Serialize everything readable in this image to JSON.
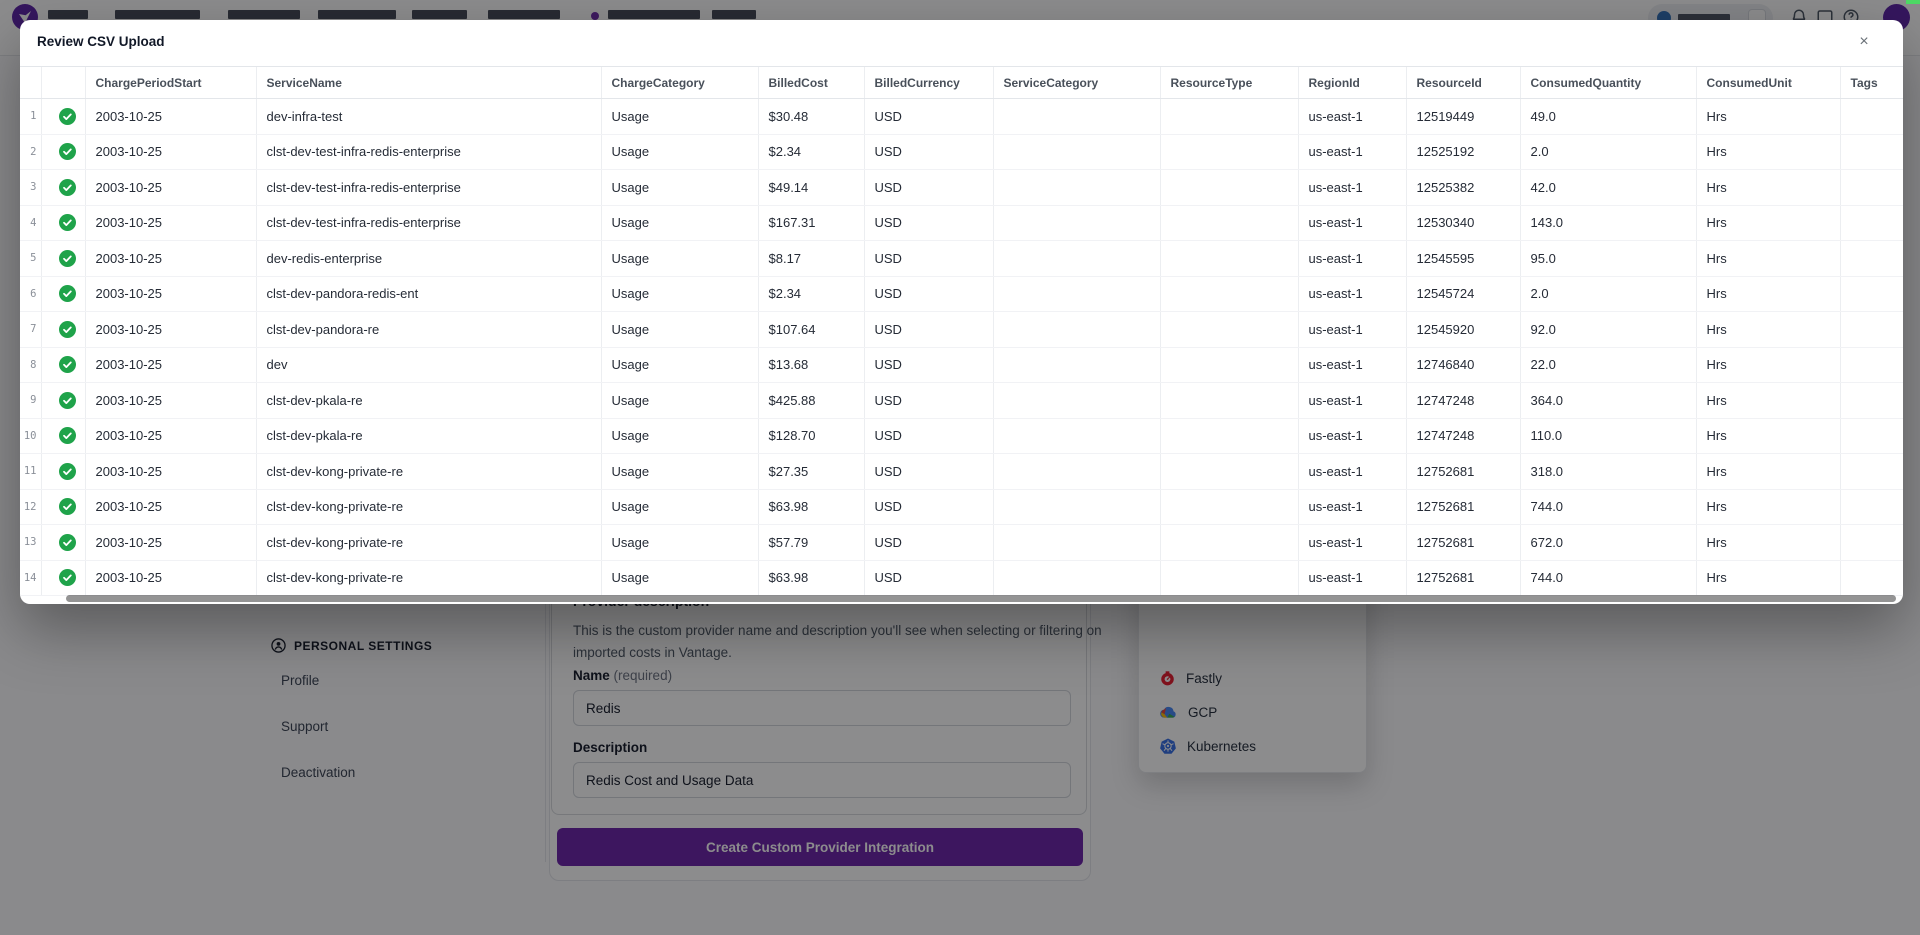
{
  "navbar": {
    "icons": [
      "notifications-icon",
      "messages-icon",
      "help-icon"
    ],
    "brand_color": "#5b21a6"
  },
  "modal": {
    "title": "Review CSV Upload",
    "close_glyph": "×",
    "table": {
      "status_icon": "check-circle-green",
      "columns": [
        "ChargePeriodStart",
        "ServiceName",
        "ChargeCategory",
        "BilledCost",
        "BilledCurrency",
        "ServiceCategory",
        "ResourceType",
        "RegionId",
        "ResourceId",
        "ConsumedQuantity",
        "ConsumedUnit",
        "Tags"
      ],
      "rows": [
        [
          "2003-10-25",
          "dev-infra-test",
          "Usage",
          "$30.48",
          "USD",
          "",
          "",
          "us-east-1",
          "12519449",
          "49.0",
          "Hrs",
          ""
        ],
        [
          "2003-10-25",
          "clst-dev-test-infra-redis-enterprise",
          "Usage",
          "$2.34",
          "USD",
          "",
          "",
          "us-east-1",
          "12525192",
          "2.0",
          "Hrs",
          ""
        ],
        [
          "2003-10-25",
          "clst-dev-test-infra-redis-enterprise",
          "Usage",
          "$49.14",
          "USD",
          "",
          "",
          "us-east-1",
          "12525382",
          "42.0",
          "Hrs",
          ""
        ],
        [
          "2003-10-25",
          "clst-dev-test-infra-redis-enterprise",
          "Usage",
          "$167.31",
          "USD",
          "",
          "",
          "us-east-1",
          "12530340",
          "143.0",
          "Hrs",
          ""
        ],
        [
          "2003-10-25",
          "dev-redis-enterprise",
          "Usage",
          "$8.17",
          "USD",
          "",
          "",
          "us-east-1",
          "12545595",
          "95.0",
          "Hrs",
          ""
        ],
        [
          "2003-10-25",
          "clst-dev-pandora-redis-ent",
          "Usage",
          "$2.34",
          "USD",
          "",
          "",
          "us-east-1",
          "12545724",
          "2.0",
          "Hrs",
          ""
        ],
        [
          "2003-10-25",
          "clst-dev-pandora-re",
          "Usage",
          "$107.64",
          "USD",
          "",
          "",
          "us-east-1",
          "12545920",
          "92.0",
          "Hrs",
          ""
        ],
        [
          "2003-10-25",
          "dev",
          "Usage",
          "$13.68",
          "USD",
          "",
          "",
          "us-east-1",
          "12746840",
          "22.0",
          "Hrs",
          ""
        ],
        [
          "2003-10-25",
          "clst-dev-pkala-re",
          "Usage",
          "$425.88",
          "USD",
          "",
          "",
          "us-east-1",
          "12747248",
          "364.0",
          "Hrs",
          ""
        ],
        [
          "2003-10-25",
          "clst-dev-pkala-re",
          "Usage",
          "$128.70",
          "USD",
          "",
          "",
          "us-east-1",
          "12747248",
          "110.0",
          "Hrs",
          ""
        ],
        [
          "2003-10-25",
          "clst-dev-kong-private-re",
          "Usage",
          "$27.35",
          "USD",
          "",
          "",
          "us-east-1",
          "12752681",
          "318.0",
          "Hrs",
          ""
        ],
        [
          "2003-10-25",
          "clst-dev-kong-private-re",
          "Usage",
          "$63.98",
          "USD",
          "",
          "",
          "us-east-1",
          "12752681",
          "744.0",
          "Hrs",
          ""
        ],
        [
          "2003-10-25",
          "clst-dev-kong-private-re",
          "Usage",
          "$57.79",
          "USD",
          "",
          "",
          "us-east-1",
          "12752681",
          "672.0",
          "Hrs",
          ""
        ],
        [
          "2003-10-25",
          "clst-dev-kong-private-re",
          "Usage",
          "$63.98",
          "USD",
          "",
          "",
          "us-east-1",
          "12752681",
          "744.0",
          "Hrs",
          ""
        ]
      ]
    }
  },
  "background": {
    "sidebar": {
      "section_label": "PERSONAL SETTINGS",
      "items": [
        {
          "label": "Profile"
        },
        {
          "label": "Support"
        },
        {
          "label": "Deactivation"
        }
      ]
    },
    "form": {
      "heading": "Provider description",
      "description": "This is the custom provider name and description you'll see when selecting or filtering on imported costs in Vantage.",
      "name_label": "Name",
      "name_required": "(required)",
      "name_value": "Redis",
      "description_label": "Description",
      "description_value": "Redis Cost and Usage Data",
      "submit_label": "Create Custom Provider Integration"
    },
    "provider_dropdown": {
      "items": [
        {
          "label": "Fastly",
          "icon": "fastly-icon"
        },
        {
          "label": "GCP",
          "icon": "gcp-icon"
        },
        {
          "label": "Kubernetes",
          "icon": "kubernetes-icon"
        }
      ]
    }
  },
  "colors": {
    "accent_purple": "#6b21a8",
    "success_green": "#1fa34a"
  }
}
